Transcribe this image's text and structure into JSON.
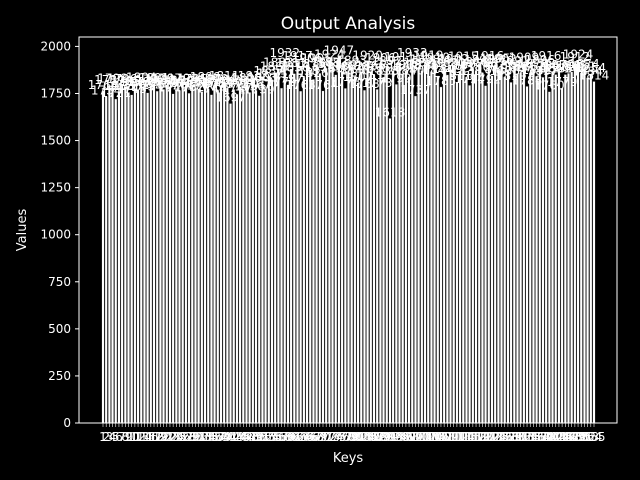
{
  "chart_data": {
    "type": "bar",
    "title": "Output Analysis",
    "xlabel": "Keys",
    "ylabel": "Values",
    "ylim": [
      0,
      2050
    ],
    "y_ticks": [
      0,
      250,
      500,
      750,
      1000,
      1250,
      1500,
      1750,
      2000
    ],
    "categories_range": {
      "first": 1,
      "last": 155
    },
    "values": [
      1764,
      1734,
      1789,
      1798,
      1721,
      1758,
      1796,
      1785,
      1757,
      1743,
      1778,
      1768,
      1804,
      1779,
      1754,
      1792,
      1801,
      1763,
      1788,
      1773,
      1797,
      1786,
      1749,
      1771,
      1766,
      1799,
      1783,
      1752,
      1795,
      1784,
      1775,
      1760,
      1806,
      1776,
      1744,
      1790,
      1768,
      1794,
      1811,
      1780,
      1697,
      1772,
      1747,
      1787,
      1770,
      1800,
      1756,
      1812,
      1767,
      1739,
      1803,
      1777,
      1837,
      1825,
      1861,
      1883,
      1779,
      1932,
      1797,
      1881,
      1856,
      1917,
      1763,
      1838,
      1906,
      1875,
      1826,
      1905,
      1858,
      1764,
      1881,
      1924,
      1882,
      1850,
      1947,
      1869,
      1778,
      1862,
      1893,
      1840,
      1807,
      1862,
      1768,
      1920,
      1866,
      1850,
      1773,
      1906,
      1838,
      1892,
      1618,
      1872,
      1799,
      1911,
      1856,
      1868,
      1840,
      1933,
      1737,
      1882,
      1873,
      1898,
      1919,
      1867,
      1910,
      1844,
      1785,
      1893,
      1849,
      1880,
      1902,
      1811,
      1867,
      1915,
      1838,
      1794,
      1886,
      1874,
      1895,
      1860,
      1792,
      1916,
      1845,
      1905,
      1879,
      1902,
      1838,
      1869,
      1810,
      1891,
      1857,
      1861,
      1909,
      1788,
      1862,
      1878,
      1842,
      1896,
      1837,
      1916,
      1760,
      1867,
      1851,
      1870,
      1779,
      1851,
      1858,
      1865,
      1912,
      1924,
      1861,
      1874,
      1834,
      1854,
      1814
    ],
    "bar_color": "#ffffff",
    "bar_edge_color": "#1a1a1a",
    "label_color": "#ffffff",
    "background": "#000000",
    "grid": false
  }
}
